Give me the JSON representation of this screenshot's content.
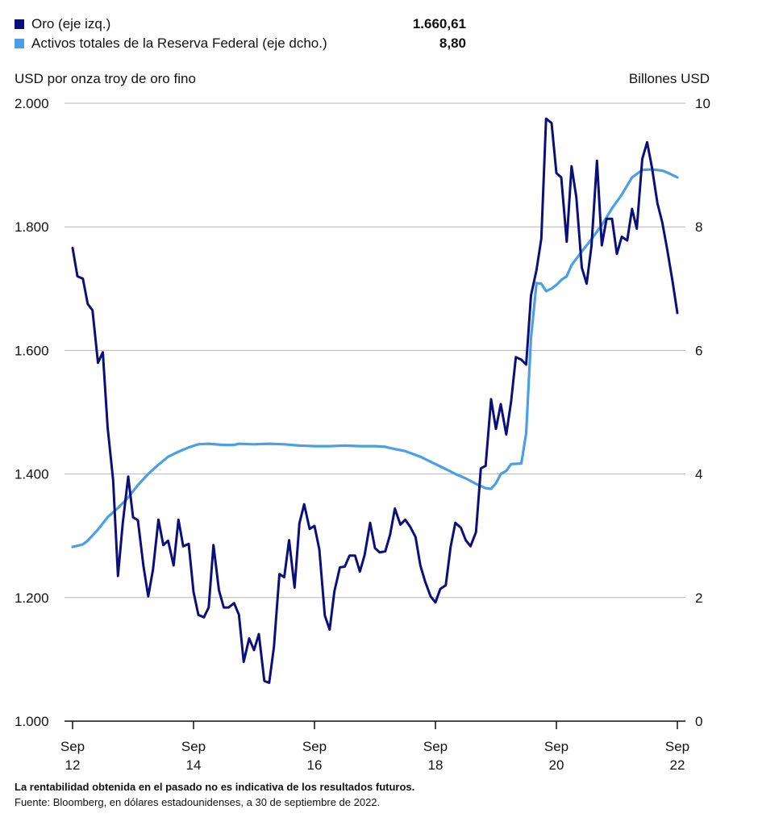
{
  "legend": [
    {
      "label": "Oro (eje izq.)",
      "value": "1.660,61",
      "color": "#0b0f7a"
    },
    {
      "label": "Activos totales de la Reserva Federal (eje dcho.)",
      "value": "8,80",
      "color": "#4a9fe6"
    }
  ],
  "footer": {
    "disclaimer": "La rentabilidad obtenida en el pasado no es indicativa de los resultados futuros.",
    "source": "Fuente: Bloomberg, en dólares estadounidenses, a 30 de septiembre de 2022."
  },
  "chart_data": {
    "type": "line",
    "ylabel_left": "USD por onza troy de oro fino",
    "ylabel_right": "Billones USD",
    "ylim_left": [
      1000,
      2000
    ],
    "ylim_right": [
      0,
      10
    ],
    "yticks_left": [
      "1.000",
      "1.200",
      "1.400",
      "1.600",
      "1.800",
      "2.000"
    ],
    "yticks_right": [
      "0",
      "2",
      "4",
      "6",
      "8",
      "10"
    ],
    "xlim": [
      2012.75,
      2022.75
    ],
    "xticks": [
      {
        "at": 2012.75,
        "month": "Sep",
        "year": "12"
      },
      {
        "at": 2014.75,
        "month": "Sep",
        "year": "14"
      },
      {
        "at": 2016.75,
        "month": "Sep",
        "year": "16"
      },
      {
        "at": 2018.75,
        "month": "Sep",
        "year": "18"
      },
      {
        "at": 2020.75,
        "month": "Sep",
        "year": "20"
      },
      {
        "at": 2022.75,
        "month": "Sep",
        "year": "22"
      }
    ],
    "grid": true,
    "series": [
      {
        "name": "Oro (eje izq.)",
        "axis": "left",
        "color": "#0b0f7a",
        "points": [
          [
            2012.75,
            1766
          ],
          [
            2012.83,
            1720
          ],
          [
            2012.92,
            1716
          ],
          [
            2013.0,
            1675
          ],
          [
            2013.08,
            1665
          ],
          [
            2013.17,
            1580
          ],
          [
            2013.25,
            1597
          ],
          [
            2013.33,
            1475
          ],
          [
            2013.42,
            1390
          ],
          [
            2013.5,
            1235
          ],
          [
            2013.58,
            1320
          ],
          [
            2013.67,
            1396
          ],
          [
            2013.75,
            1330
          ],
          [
            2013.83,
            1325
          ],
          [
            2013.92,
            1252
          ],
          [
            2014.0,
            1202
          ],
          [
            2014.08,
            1245
          ],
          [
            2014.17,
            1326
          ],
          [
            2014.25,
            1285
          ],
          [
            2014.33,
            1292
          ],
          [
            2014.42,
            1252
          ],
          [
            2014.5,
            1326
          ],
          [
            2014.58,
            1283
          ],
          [
            2014.67,
            1287
          ],
          [
            2014.75,
            1209
          ],
          [
            2014.83,
            1172
          ],
          [
            2014.92,
            1168
          ],
          [
            2015.0,
            1184
          ],
          [
            2015.08,
            1285
          ],
          [
            2015.17,
            1212
          ],
          [
            2015.25,
            1184
          ],
          [
            2015.33,
            1184
          ],
          [
            2015.42,
            1191
          ],
          [
            2015.5,
            1172
          ],
          [
            2015.58,
            1096
          ],
          [
            2015.67,
            1134
          ],
          [
            2015.75,
            1115
          ],
          [
            2015.83,
            1141
          ],
          [
            2015.92,
            1065
          ],
          [
            2016.0,
            1062
          ],
          [
            2016.08,
            1120
          ],
          [
            2016.17,
            1238
          ],
          [
            2016.25,
            1233
          ],
          [
            2016.33,
            1293
          ],
          [
            2016.42,
            1216
          ],
          [
            2016.5,
            1320
          ],
          [
            2016.58,
            1351
          ],
          [
            2016.67,
            1311
          ],
          [
            2016.75,
            1316
          ],
          [
            2016.83,
            1278
          ],
          [
            2016.92,
            1171
          ],
          [
            2017.0,
            1148
          ],
          [
            2017.08,
            1210
          ],
          [
            2017.17,
            1249
          ],
          [
            2017.25,
            1250
          ],
          [
            2017.33,
            1268
          ],
          [
            2017.42,
            1268
          ],
          [
            2017.5,
            1242
          ],
          [
            2017.58,
            1269
          ],
          [
            2017.67,
            1321
          ],
          [
            2017.75,
            1280
          ],
          [
            2017.83,
            1273
          ],
          [
            2017.92,
            1275
          ],
          [
            2018.0,
            1302
          ],
          [
            2018.08,
            1344
          ],
          [
            2018.17,
            1318
          ],
          [
            2018.25,
            1326
          ],
          [
            2018.33,
            1315
          ],
          [
            2018.42,
            1298
          ],
          [
            2018.5,
            1252
          ],
          [
            2018.58,
            1226
          ],
          [
            2018.67,
            1202
          ],
          [
            2018.75,
            1192
          ],
          [
            2018.83,
            1214
          ],
          [
            2018.92,
            1220
          ],
          [
            2019.0,
            1282
          ],
          [
            2019.08,
            1321
          ],
          [
            2019.17,
            1313
          ],
          [
            2019.25,
            1293
          ],
          [
            2019.33,
            1283
          ],
          [
            2019.42,
            1306
          ],
          [
            2019.5,
            1409
          ],
          [
            2019.58,
            1413
          ],
          [
            2019.67,
            1521
          ],
          [
            2019.75,
            1473
          ],
          [
            2019.83,
            1513
          ],
          [
            2019.92,
            1464
          ],
          [
            2020.0,
            1517
          ],
          [
            2020.08,
            1589
          ],
          [
            2020.17,
            1585
          ],
          [
            2020.25,
            1577
          ],
          [
            2020.33,
            1689
          ],
          [
            2020.42,
            1730
          ],
          [
            2020.5,
            1781
          ],
          [
            2020.58,
            1975
          ],
          [
            2020.67,
            1968
          ],
          [
            2020.75,
            1887
          ],
          [
            2020.83,
            1880
          ],
          [
            2020.92,
            1776
          ],
          [
            2021.0,
            1898
          ],
          [
            2021.08,
            1848
          ],
          [
            2021.17,
            1734
          ],
          [
            2021.25,
            1708
          ],
          [
            2021.33,
            1769
          ],
          [
            2021.42,
            1907
          ],
          [
            2021.5,
            1770
          ],
          [
            2021.58,
            1813
          ],
          [
            2021.67,
            1813
          ],
          [
            2021.75,
            1756
          ],
          [
            2021.83,
            1784
          ],
          [
            2021.92,
            1778
          ],
          [
            2022.0,
            1829
          ],
          [
            2022.08,
            1797
          ],
          [
            2022.17,
            1910
          ],
          [
            2022.25,
            1937
          ],
          [
            2022.33,
            1896
          ],
          [
            2022.42,
            1838
          ],
          [
            2022.5,
            1807
          ],
          [
            2022.58,
            1765
          ],
          [
            2022.67,
            1712
          ],
          [
            2022.75,
            1660.61
          ]
        ]
      },
      {
        "name": "Activos totales de la Reserva Federal (eje dcho.)",
        "axis": "right",
        "color": "#4a9fe6",
        "points": [
          [
            2012.75,
            2.82
          ],
          [
            2012.92,
            2.86
          ],
          [
            2013.0,
            2.92
          ],
          [
            2013.17,
            3.1
          ],
          [
            2013.33,
            3.3
          ],
          [
            2013.5,
            3.45
          ],
          [
            2013.67,
            3.62
          ],
          [
            2013.83,
            3.82
          ],
          [
            2014.0,
            4.0
          ],
          [
            2014.17,
            4.15
          ],
          [
            2014.33,
            4.28
          ],
          [
            2014.5,
            4.36
          ],
          [
            2014.67,
            4.43
          ],
          [
            2014.83,
            4.48
          ],
          [
            2015.0,
            4.49
          ],
          [
            2015.25,
            4.47
          ],
          [
            2015.42,
            4.47
          ],
          [
            2015.5,
            4.49
          ],
          [
            2015.75,
            4.48
          ],
          [
            2016.0,
            4.49
          ],
          [
            2016.25,
            4.48
          ],
          [
            2016.5,
            4.46
          ],
          [
            2016.75,
            4.45
          ],
          [
            2017.0,
            4.45
          ],
          [
            2017.25,
            4.46
          ],
          [
            2017.5,
            4.45
          ],
          [
            2017.75,
            4.45
          ],
          [
            2017.92,
            4.44
          ],
          [
            2018.0,
            4.42
          ],
          [
            2018.25,
            4.37
          ],
          [
            2018.5,
            4.28
          ],
          [
            2018.75,
            4.16
          ],
          [
            2018.92,
            4.08
          ],
          [
            2019.08,
            4.0
          ],
          [
            2019.25,
            3.93
          ],
          [
            2019.42,
            3.84
          ],
          [
            2019.58,
            3.77
          ],
          [
            2019.67,
            3.76
          ],
          [
            2019.75,
            3.85
          ],
          [
            2019.83,
            4.0
          ],
          [
            2019.92,
            4.05
          ],
          [
            2020.0,
            4.16
          ],
          [
            2020.17,
            4.17
          ],
          [
            2020.25,
            4.66
          ],
          [
            2020.33,
            6.2
          ],
          [
            2020.42,
            7.09
          ],
          [
            2020.5,
            7.08
          ],
          [
            2020.58,
            6.96
          ],
          [
            2020.67,
            7.0
          ],
          [
            2020.75,
            7.06
          ],
          [
            2020.83,
            7.14
          ],
          [
            2020.92,
            7.2
          ],
          [
            2021.0,
            7.38
          ],
          [
            2021.17,
            7.6
          ],
          [
            2021.33,
            7.8
          ],
          [
            2021.5,
            8.03
          ],
          [
            2021.67,
            8.3
          ],
          [
            2021.83,
            8.52
          ],
          [
            2022.0,
            8.8
          ],
          [
            2022.17,
            8.92
          ],
          [
            2022.33,
            8.93
          ],
          [
            2022.5,
            8.91
          ],
          [
            2022.58,
            8.88
          ],
          [
            2022.67,
            8.84
          ],
          [
            2022.75,
            8.8
          ]
        ]
      }
    ]
  }
}
